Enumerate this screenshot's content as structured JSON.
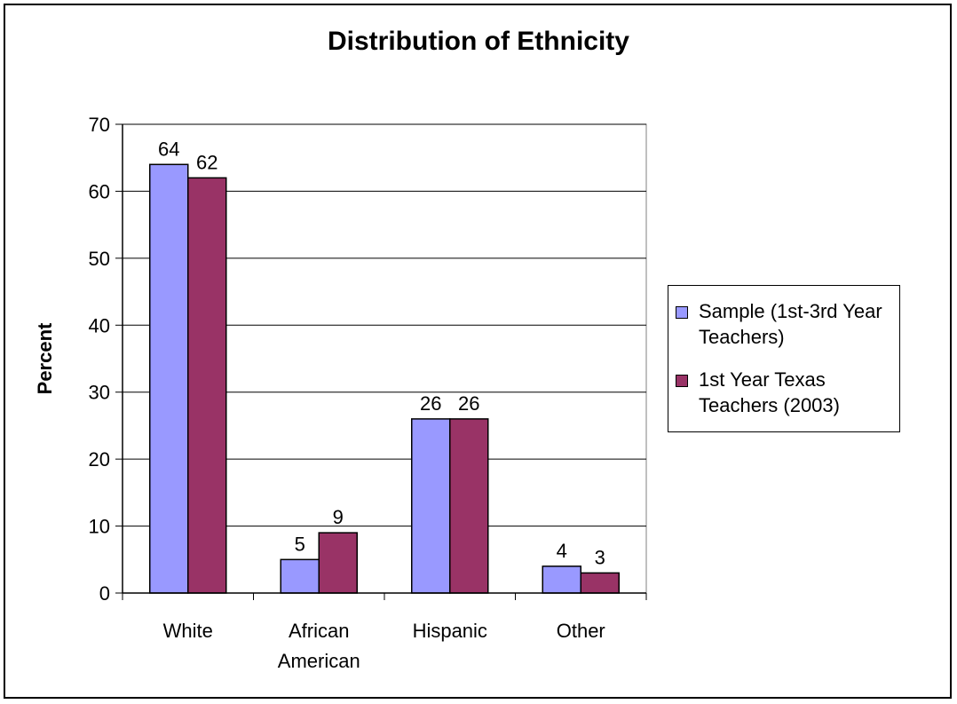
{
  "chart_data": {
    "type": "bar",
    "title": "Distribution of Ethnicity",
    "ylabel": "Percent",
    "xlabel": "",
    "ylim": [
      0,
      70
    ],
    "yticks": [
      0,
      10,
      20,
      30,
      40,
      50,
      60,
      70
    ],
    "categories": [
      "White",
      "African\nAmerican",
      "Hispanic",
      "Other"
    ],
    "series": [
      {
        "name": "Sample (1st-3rd Year\nTeachers)",
        "values": [
          64,
          5,
          26,
          4
        ],
        "color": "#9999ff"
      },
      {
        "name": "1st Year Texas\nTeachers (2003)",
        "values": [
          62,
          9,
          26,
          3
        ],
        "color": "#993366"
      }
    ],
    "gridlines": true,
    "data_labels": true,
    "legend_position": "right"
  }
}
